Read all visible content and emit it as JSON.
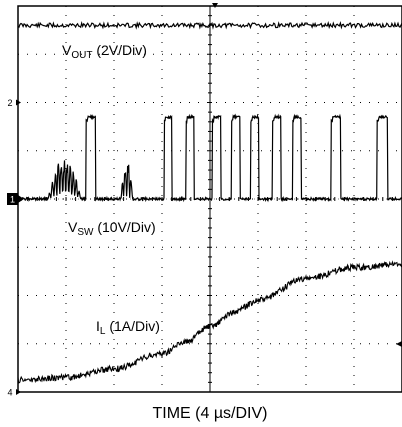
{
  "chart_data": {
    "type": "line",
    "title": "",
    "xlabel": "TIME (4 µs/DIV)",
    "grid": true,
    "grid_divisions": {
      "x": 8,
      "y": 8
    },
    "x_range_div": [
      0,
      8
    ],
    "y_range_div": [
      0,
      8
    ],
    "channel_markers": [
      {
        "label": "2",
        "y_div": 6
      },
      {
        "label": "1",
        "y_div": 4
      },
      {
        "label": "4",
        "y_div": 0
      }
    ],
    "series": [
      {
        "name": "VOUT",
        "label_main": "V",
        "label_sub": "OUT",
        "label_suffix": " (2V/Div)",
        "color": "#000000",
        "level_div": 7.6,
        "constant": true
      },
      {
        "name": "VSW",
        "label_main": "V",
        "label_sub": "SW",
        "label_suffix": " (10V/Div)",
        "color": "#000000",
        "low_div": 4.0,
        "high_div": 5.7,
        "ringing_burst_div": [
          [
            0.62,
            1.32
          ],
          [
            2.14,
            2.4
          ]
        ],
        "pulses_div": [
          [
            1.42,
            1.62
          ],
          [
            3.05,
            3.2
          ],
          [
            3.5,
            3.67
          ],
          [
            4.05,
            4.23
          ],
          [
            4.45,
            4.63
          ],
          [
            4.85,
            5.02
          ],
          [
            5.3,
            5.48
          ],
          [
            5.72,
            5.9
          ],
          [
            6.52,
            6.72
          ],
          [
            7.48,
            7.7
          ]
        ]
      },
      {
        "name": "IL",
        "label_main": "I",
        "label_sub": "L",
        "label_suffix": " (1A/Div)",
        "color": "#000000",
        "x_div": [
          0,
          1,
          2,
          3,
          3.5,
          4,
          4.5,
          5,
          6,
          7,
          8
        ],
        "y_div": [
          0.25,
          0.3,
          0.48,
          0.8,
          1.05,
          1.35,
          1.65,
          1.9,
          2.35,
          2.58,
          2.65
        ]
      }
    ]
  }
}
